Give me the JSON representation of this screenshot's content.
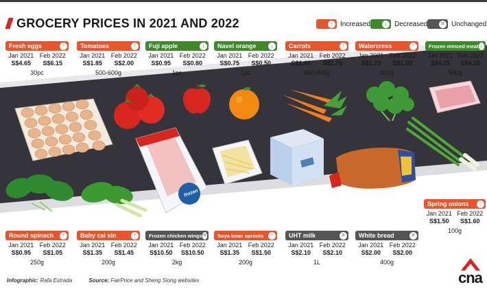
{
  "title": "GROCERY PRICES IN 2021 AND 2022",
  "legend": [
    {
      "key": "increased",
      "label": "Increased",
      "color": "#e8542b",
      "icon": "arrow-up-icon",
      "glyph": "↑"
    },
    {
      "key": "decreased",
      "label": "Decreased",
      "color": "#3e8a2a",
      "icon": "arrow-down-icon",
      "glyph": "↓"
    },
    {
      "key": "unchanged",
      "label": "Unchanged",
      "color": "#555555",
      "icon": "equals-icon",
      "glyph": "="
    }
  ],
  "col_labels": {
    "jan": "Jan 2021",
    "feb": "Feb 2022"
  },
  "items": [
    {
      "id": "fresh-eggs",
      "name": "Fresh eggs",
      "jan": "S$4.65",
      "feb": "S$6.15",
      "qty": "30pc",
      "status": "increased"
    },
    {
      "id": "tomatoes",
      "name": "Tomatoes",
      "jan": "S$1.85",
      "feb": "S$2.00",
      "qty": "500-600g",
      "status": "increased"
    },
    {
      "id": "fuji-apple",
      "name": "Fuji apple",
      "jan": "S$0.95",
      "feb": "S$0.80",
      "qty": "1pc",
      "status": "decreased"
    },
    {
      "id": "navel-orange",
      "name": "Navel orange",
      "jan": "S$0.75",
      "feb": "S$0.50",
      "qty": "1pc",
      "status": "decreased"
    },
    {
      "id": "carrots",
      "name": "Carrots",
      "jan": "S$1.65",
      "feb": "S$1.70",
      "qty": "850-900g",
      "status": "increased"
    },
    {
      "id": "watercress",
      "name": "Watercress",
      "jan": "S$1.20",
      "feb": "S$1.55",
      "qty": "200g",
      "status": "increased"
    },
    {
      "id": "frozen-minced-meat",
      "name": "Frozen minced meat",
      "jan": "S$4.25",
      "feb": "S$4.15",
      "qty": "500g",
      "status": "decreased"
    },
    {
      "id": "spring-onions",
      "name": "Spring onions",
      "jan": "S$1.50",
      "feb": "S$1.60",
      "qty": "100g",
      "status": "increased"
    },
    {
      "id": "round-spinach",
      "name": "Round spinach",
      "jan": "S$0.95",
      "feb": "S$1.05",
      "qty": "250g",
      "status": "increased"
    },
    {
      "id": "baby-cai-xin",
      "name": "Baby cai xin",
      "jan": "S$1.35",
      "feb": "S$1.45",
      "qty": "200g",
      "status": "increased"
    },
    {
      "id": "frozen-chicken-wings",
      "name": "Frozen chicken wings",
      "jan": "S$10.50",
      "feb": "S$10.50",
      "qty": "2kg",
      "status": "unchanged"
    },
    {
      "id": "soya-bean-sprouts",
      "name": "Soya bean sprouts",
      "jan": "S$1.35",
      "feb": "S$1.50",
      "qty": "200g",
      "status": "increased"
    },
    {
      "id": "uht-milk",
      "name": "UHT milk",
      "jan": "S$2.10",
      "feb": "S$2.10",
      "qty": "1L",
      "status": "unchanged"
    },
    {
      "id": "white-bread",
      "name": "White bread",
      "jan": "S$2.00",
      "feb": "S$2.00",
      "qty": "400g",
      "status": "unchanged"
    }
  ],
  "artwork": {
    "frozen_label": "frozen"
  },
  "footer": {
    "infographic_label": "Infographic:",
    "infographic_credit": "Rafa Estrada",
    "source_label": "Source:",
    "source_text": "FairPrice and Sheng Siong websites"
  },
  "logo": {
    "text": "cna",
    "color": "#d8261f"
  }
}
